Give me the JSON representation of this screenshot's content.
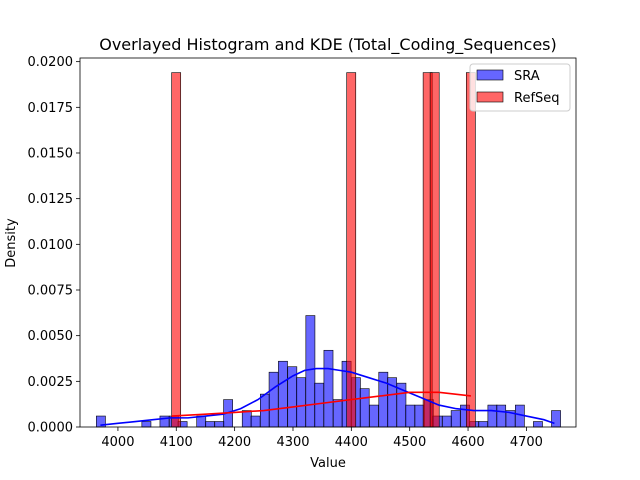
{
  "chart_data": {
    "type": "bar",
    "title": "Overlayed Histogram and KDE (Total_Coding_Sequences)",
    "xlabel": "Value",
    "ylabel": "Density",
    "xlim": [
      3935,
      4785
    ],
    "ylim": [
      0,
      0.0202
    ],
    "x_ticks": [
      4000,
      4100,
      4200,
      4300,
      4400,
      4500,
      4600,
      4700
    ],
    "y_ticks": [
      0.0,
      0.0025,
      0.005,
      0.0075,
      0.01,
      0.0125,
      0.015,
      0.0175,
      0.02
    ],
    "x_tick_labels": [
      "4000",
      "4100",
      "4200",
      "4300",
      "4400",
      "4500",
      "4600",
      "4700"
    ],
    "y_tick_labels": [
      "0.0000",
      "0.0025",
      "0.0050",
      "0.0075",
      "0.0100",
      "0.0125",
      "0.0150",
      "0.0175",
      "0.0200"
    ],
    "legend_position": "top-right",
    "grid": false,
    "bin_width": 15.6,
    "series": [
      {
        "name": "SRA",
        "kind": "histogram",
        "color": "#0000ff",
        "bin_starts": [
          3963,
          3979,
          3994,
          4010,
          4025,
          4041,
          4057,
          4072,
          4088,
          4103,
          4119,
          4135,
          4150,
          4166,
          4181,
          4197,
          4213,
          4228,
          4244,
          4259,
          4275,
          4291,
          4306,
          4322,
          4337,
          4353,
          4369,
          4384,
          4400,
          4415,
          4431,
          4447,
          4462,
          4478,
          4493,
          4509,
          4525,
          4540,
          4556,
          4571,
          4587,
          4603,
          4618,
          4634,
          4649,
          4665,
          4681,
          4696,
          4712,
          4727,
          4743
        ],
        "values": [
          0.0006,
          0,
          0,
          0,
          0,
          0.0003,
          0,
          0.0006,
          0.0006,
          0.0003,
          0,
          0.0006,
          0.0003,
          0.0003,
          0.0015,
          0,
          0.0009,
          0.0006,
          0.0018,
          0.003,
          0.0036,
          0.0033,
          0.0027,
          0.0061,
          0.0024,
          0.0042,
          0.0015,
          0.0036,
          0.0027,
          0.0021,
          0.0012,
          0.003,
          0.0027,
          0.0024,
          0.0012,
          0.0012,
          0.0015,
          0.0006,
          0.0006,
          0.0009,
          0.0012,
          0.0003,
          0.0003,
          0.0012,
          0.0012,
          0.0009,
          0.0012,
          0,
          0.0003,
          0,
          0.0009
        ]
      },
      {
        "name": "RefSeq",
        "kind": "histogram",
        "color": "#ff0000",
        "bin_starts": [
          4092,
          4392,
          4523,
          4535,
          4597
        ],
        "values": [
          0.0194,
          0.0194,
          0.0194,
          0.0194,
          0.0194
        ]
      }
    ],
    "kde": [
      {
        "series": "SRA",
        "color": "#0000ff",
        "x": [
          3970,
          4000,
          4030,
          4060,
          4090,
          4120,
          4150,
          4180,
          4210,
          4240,
          4270,
          4300,
          4320,
          4340,
          4360,
          4380,
          4400,
          4430,
          4460,
          4490,
          4520,
          4550,
          4580,
          4610,
          4640,
          4670,
          4700,
          4730,
          4748
        ],
        "y": [
          0.0001,
          0.0002,
          0.0003,
          0.0004,
          0.0005,
          0.0005,
          0.0006,
          0.0007,
          0.001,
          0.0015,
          0.0022,
          0.0028,
          0.0031,
          0.0032,
          0.0032,
          0.0031,
          0.003,
          0.0027,
          0.0024,
          0.002,
          0.0016,
          0.0012,
          0.001,
          0.0009,
          0.0009,
          0.0008,
          0.0006,
          0.0004,
          0.0002
        ]
      },
      {
        "series": "RefSeq",
        "color": "#ff0000",
        "x": [
          4092,
          4150,
          4200,
          4250,
          4300,
          4350,
          4400,
          4450,
          4500,
          4550,
          4605
        ],
        "y": [
          0.0006,
          0.0007,
          0.0008,
          0.0009,
          0.0011,
          0.0013,
          0.0015,
          0.0017,
          0.0019,
          0.0019,
          0.0017
        ]
      }
    ]
  }
}
